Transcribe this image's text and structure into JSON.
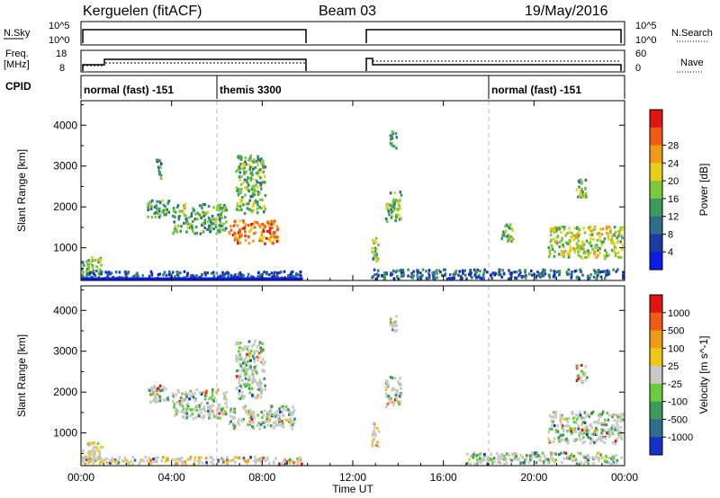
{
  "header": {
    "station": "Kerguelen (fitACF)",
    "beam": "Beam 03",
    "date": "19/May/2016"
  },
  "summary_labels": {
    "nsky": "N.Sky",
    "nsearch": "N.Search",
    "freq_line1": "Freq.",
    "freq_line2": "[MHz]",
    "nave": "Nave",
    "cpid": "CPID",
    "left_ticks_top": [
      "10^5",
      "10^0"
    ],
    "right_ticks_top": [
      "10^5",
      "10^0"
    ],
    "left_ticks_freq": [
      "18",
      "8"
    ],
    "right_ticks_nave": [
      "60",
      "0"
    ]
  },
  "cpid_segments": [
    {
      "label": "normal (fast) -151",
      "start_hour": 0
    },
    {
      "label": "themis 3300",
      "start_hour": 6
    },
    {
      "label": "normal (fast) -151",
      "start_hour": 18
    }
  ],
  "chart_data": [
    {
      "type": "heatmap",
      "title": "",
      "xlabel": "Time UT",
      "ylabel": "Slant Range [km]",
      "x_ticks": [
        "00:00",
        "04:00",
        "08:00",
        "12:00",
        "16:00",
        "20:00",
        "00:00"
      ],
      "x_range_hours": [
        0,
        24
      ],
      "y_ticks": [
        1000,
        2000,
        3000,
        4000
      ],
      "y_range_km": [
        200,
        4600
      ],
      "colorbar": {
        "label": "Power [dB]",
        "ticks": [
          4,
          8,
          12,
          16,
          20,
          24,
          28
        ],
        "colors": [
          "#0a1ee6",
          "#1e3ca0",
          "#2f6e8a",
          "#3c9a5a",
          "#7ec83c",
          "#e8d018",
          "#f09a1a",
          "#f05a14",
          "#e01414"
        ]
      },
      "echo_regions": [
        {
          "t0": 0.0,
          "t1": 1.0,
          "r0": 250,
          "r1": 800,
          "level": 0.45
        },
        {
          "t0": 0.0,
          "t1": 9.8,
          "r0": 200,
          "r1": 450,
          "level": 0.2
        },
        {
          "t0": 2.9,
          "t1": 4.0,
          "r0": 1700,
          "r1": 2200,
          "level": 0.4
        },
        {
          "t0": 3.3,
          "t1": 3.6,
          "r0": 2600,
          "r1": 3200,
          "level": 0.35
        },
        {
          "t0": 4.0,
          "t1": 6.5,
          "r0": 1300,
          "r1": 2100,
          "level": 0.4
        },
        {
          "t0": 6.5,
          "t1": 8.8,
          "r0": 1050,
          "r1": 1700,
          "level": 0.8
        },
        {
          "t0": 6.8,
          "t1": 8.2,
          "r0": 1800,
          "r1": 3300,
          "level": 0.45
        },
        {
          "t0": 12.8,
          "t1": 13.2,
          "r0": 600,
          "r1": 1300,
          "level": 0.45
        },
        {
          "t0": 13.4,
          "t1": 14.2,
          "r0": 1600,
          "r1": 2400,
          "level": 0.45
        },
        {
          "t0": 13.6,
          "t1": 14.0,
          "r0": 3400,
          "r1": 3900,
          "level": 0.4
        },
        {
          "t0": 18.5,
          "t1": 19.2,
          "r0": 1100,
          "r1": 1600,
          "level": 0.4
        },
        {
          "t0": 20.6,
          "t1": 24.0,
          "r0": 700,
          "r1": 1550,
          "level": 0.55
        },
        {
          "t0": 21.8,
          "t1": 22.4,
          "r0": 2200,
          "r1": 2700,
          "level": 0.45
        },
        {
          "t0": 12.8,
          "t1": 24.0,
          "r0": 200,
          "r1": 500,
          "level": 0.2
        }
      ]
    },
    {
      "type": "heatmap",
      "title": "",
      "xlabel": "Time UT",
      "ylabel": "Slant Range [km]",
      "x_ticks": [
        "00:00",
        "04:00",
        "08:00",
        "12:00",
        "16:00",
        "20:00",
        "00:00"
      ],
      "x_range_hours": [
        0,
        24
      ],
      "y_ticks": [
        1000,
        2000,
        3000,
        4000
      ],
      "y_range_km": [
        200,
        4600
      ],
      "colorbar": {
        "label": "Velocity [m s^-1]",
        "ticks": [
          "1000",
          "500",
          "100",
          "25",
          "-25",
          "-100",
          "-500",
          "-1000"
        ],
        "colors": [
          "#1432c8",
          "#2e6e8e",
          "#3c9a5a",
          "#6ccc3c",
          "#c8c8c8",
          "#f0c814",
          "#f09a1a",
          "#f05a14",
          "#e01414"
        ]
      },
      "echo_regions": [
        {
          "t0": 0.0,
          "t1": 1.0,
          "r0": 250,
          "r1": 800,
          "level": 0.6
        },
        {
          "t0": 0.0,
          "t1": 9.8,
          "r0": 200,
          "r1": 450,
          "level": 0.6
        },
        {
          "t0": 2.9,
          "t1": 4.0,
          "r0": 1700,
          "r1": 2200,
          "level": 0.45
        },
        {
          "t0": 4.0,
          "t1": 6.5,
          "r0": 1300,
          "r1": 2100,
          "level": 0.45
        },
        {
          "t0": 6.5,
          "t1": 9.5,
          "r0": 1050,
          "r1": 1700,
          "level": 0.45
        },
        {
          "t0": 6.8,
          "t1": 8.2,
          "r0": 1800,
          "r1": 3300,
          "level": 0.35
        },
        {
          "t0": 12.8,
          "t1": 13.2,
          "r0": 600,
          "r1": 1300,
          "level": 0.55
        },
        {
          "t0": 13.4,
          "t1": 14.2,
          "r0": 1600,
          "r1": 2400,
          "level": 0.45
        },
        {
          "t0": 13.6,
          "t1": 14.0,
          "r0": 3400,
          "r1": 3900,
          "level": 0.45
        },
        {
          "t0": 20.6,
          "t1": 24.0,
          "r0": 700,
          "r1": 1550,
          "level": 0.45
        },
        {
          "t0": 21.8,
          "t1": 22.4,
          "r0": 2200,
          "r1": 2700,
          "level": 0.4
        },
        {
          "t0": 17.0,
          "t1": 24.0,
          "r0": 200,
          "r1": 550,
          "level": 0.35
        }
      ]
    }
  ]
}
